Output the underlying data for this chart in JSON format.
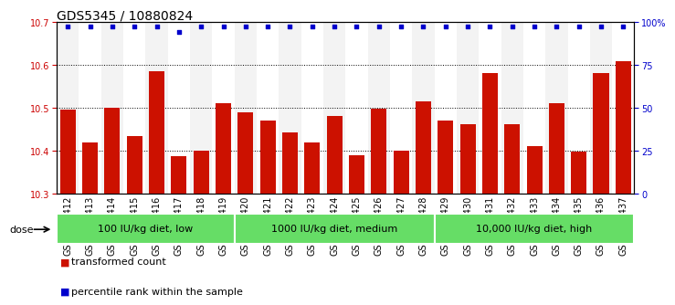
{
  "title": "GDS5345 / 10880824",
  "samples": [
    "GSM1502412",
    "GSM1502413",
    "GSM1502414",
    "GSM1502415",
    "GSM1502416",
    "GSM1502417",
    "GSM1502418",
    "GSM1502419",
    "GSM1502420",
    "GSM1502421",
    "GSM1502422",
    "GSM1502423",
    "GSM1502424",
    "GSM1502425",
    "GSM1502426",
    "GSM1502427",
    "GSM1502428",
    "GSM1502429",
    "GSM1502430",
    "GSM1502431",
    "GSM1502432",
    "GSM1502433",
    "GSM1502434",
    "GSM1502435",
    "GSM1502436",
    "GSM1502437"
  ],
  "bar_values": [
    10.495,
    10.42,
    10.5,
    10.435,
    10.585,
    10.388,
    10.4,
    10.51,
    10.49,
    10.47,
    10.443,
    10.42,
    10.48,
    10.39,
    10.498,
    10.4,
    10.515,
    10.47,
    10.462,
    10.58,
    10.462,
    10.41,
    10.51,
    10.398,
    10.58,
    10.608
  ],
  "percentile_values": [
    97,
    97,
    97,
    97,
    97,
    94,
    97,
    97,
    97,
    97,
    97,
    97,
    97,
    97,
    97,
    97,
    97,
    97,
    97,
    97,
    97,
    97,
    97,
    97,
    97,
    97
  ],
  "bar_color": "#cc1100",
  "dot_color": "#0000cc",
  "ylim_left": [
    10.3,
    10.7
  ],
  "ylim_right": [
    0,
    100
  ],
  "yticks_left": [
    10.3,
    10.4,
    10.5,
    10.6,
    10.7
  ],
  "yticks_right": [
    0,
    25,
    50,
    75,
    100
  ],
  "ytick_labels_right": [
    "0",
    "25",
    "50",
    "75",
    "100%"
  ],
  "groups": [
    {
      "label": "100 IU/kg diet, low",
      "start": 0,
      "end": 8
    },
    {
      "label": "1000 IU/kg diet, medium",
      "start": 8,
      "end": 17
    },
    {
      "label": "10,000 IU/kg diet, high",
      "start": 17,
      "end": 26
    }
  ],
  "group_color": "#66dd66",
  "dose_label": "dose",
  "legend_items": [
    {
      "label": "transformed count",
      "color": "#cc1100"
    },
    {
      "label": "percentile rank within the sample",
      "color": "#0000cc"
    }
  ],
  "background_color": "#ffffff",
  "grid_color": "#000000",
  "title_fontsize": 10,
  "tick_fontsize": 7,
  "bar_width": 0.7
}
